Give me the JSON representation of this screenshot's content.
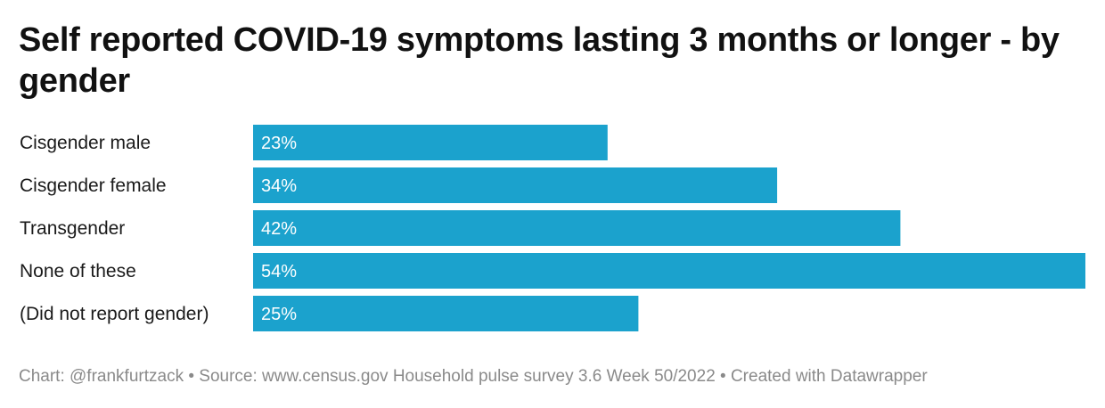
{
  "chart_data": {
    "type": "bar",
    "orientation": "horizontal",
    "title": "Self reported COVID-19 symptoms lasting 3 months or longer - by gender",
    "categories": [
      "Cisgender male",
      "Cisgender female",
      "Transgender",
      "None of these",
      "(Did not report gender)"
    ],
    "values": [
      23,
      34,
      42,
      54,
      25
    ],
    "value_labels": [
      "23%",
      "34%",
      "42%",
      "54%",
      "25%"
    ],
    "unit": "%",
    "xlim": [
      0,
      54
    ],
    "grid": false,
    "legend": "none",
    "bar_color": "#1ba2cd"
  },
  "footer": {
    "text": "Chart: @frankfurtzack • Source: www.census.gov Household pulse survey 3.6 Week 50/2022 • Created with Datawrapper"
  }
}
